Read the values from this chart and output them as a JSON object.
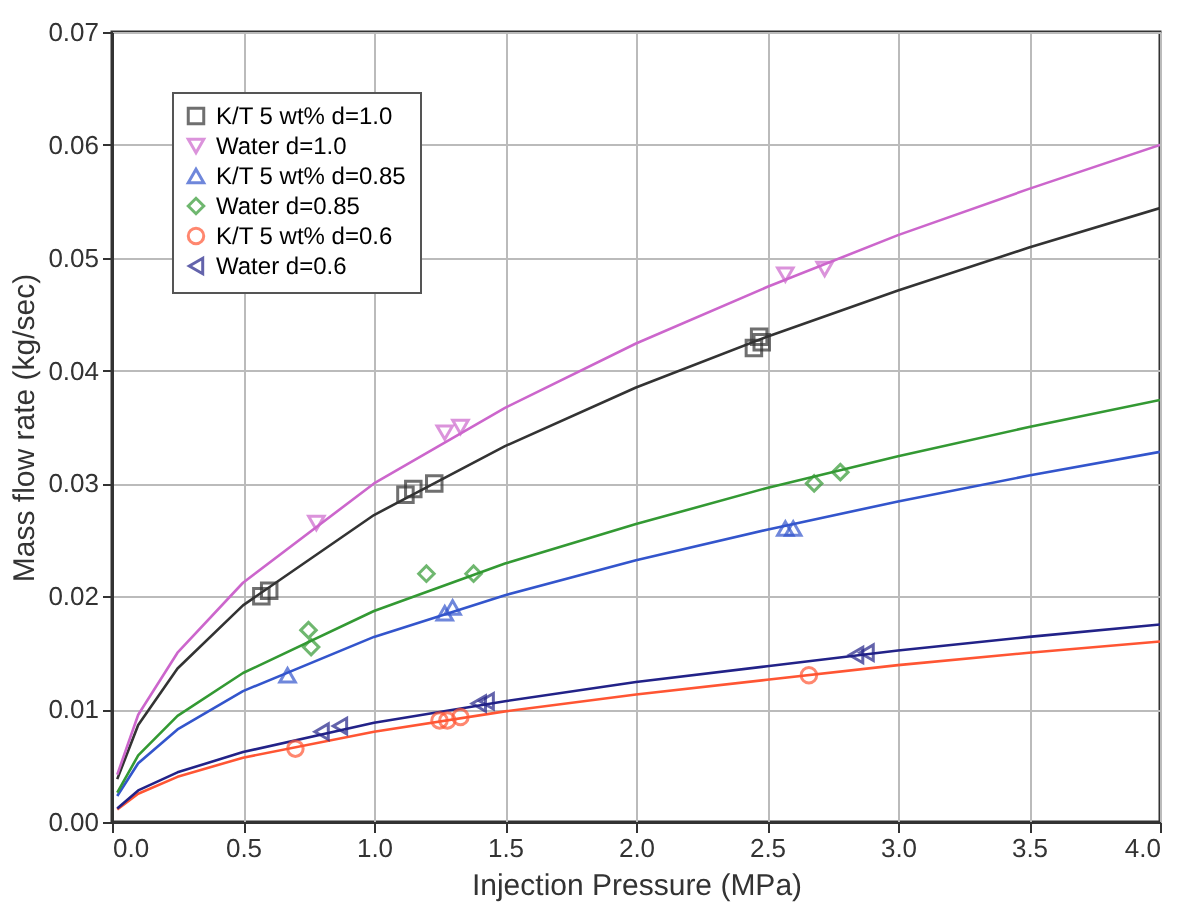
{
  "chart_data": {
    "type": "scatter",
    "xlabel": "Injection Pressure (MPa)",
    "ylabel": "Mass flow rate (kg/sec)",
    "xlim": [
      0,
      4.0
    ],
    "ylim": [
      0,
      0.07
    ],
    "xticks": [
      {
        "value": 0,
        "label": "0.0"
      },
      {
        "value": 0.5,
        "label": "0.5"
      },
      {
        "value": 1,
        "label": "1.0"
      },
      {
        "value": 1.5,
        "label": "1.5"
      },
      {
        "value": 2,
        "label": "2.0"
      },
      {
        "value": 2.5,
        "label": "2.5"
      },
      {
        "value": 3,
        "label": "3.0"
      },
      {
        "value": 3.5,
        "label": "3.5"
      },
      {
        "value": 4,
        "label": "4.0"
      }
    ],
    "yticks": [
      {
        "value": 0,
        "label": "0.00"
      },
      {
        "value": 0.01,
        "label": "0.01"
      },
      {
        "value": 0.02,
        "label": "0.02"
      },
      {
        "value": 0.03,
        "label": "0.03"
      },
      {
        "value": 0.04,
        "label": "0.04"
      },
      {
        "value": 0.05,
        "label": "0.05"
      },
      {
        "value": 0.06,
        "label": "0.06"
      },
      {
        "value": 0.07,
        "label": "0.07"
      }
    ],
    "grid": true,
    "legend": "top left",
    "series": [
      {
        "name": "K/T 5 wt% d=1.0",
        "color": "#333333",
        "marker": "square",
        "x": [
          0.57,
          0.6,
          1.12,
          1.15,
          1.23,
          2.45,
          2.47,
          2.48
        ],
        "values": [
          0.02,
          0.0205,
          0.029,
          0.0295,
          0.03,
          0.042,
          0.043,
          0.0425
        ]
      },
      {
        "name": "Water d=1.0",
        "color": "#cc66cc",
        "marker": "triangle-down",
        "x": [
          0.78,
          1.27,
          1.33,
          2.57,
          2.72
        ],
        "values": [
          0.0265,
          0.0345,
          0.035,
          0.0485,
          0.049
        ]
      },
      {
        "name": "K/T 5 wt% d=0.85",
        "color": "#3355cc",
        "marker": "triangle-up",
        "x": [
          0.67,
          1.27,
          1.3,
          2.57,
          2.6
        ],
        "values": [
          0.013,
          0.0185,
          0.019,
          0.026,
          0.026
        ]
      },
      {
        "name": "Water d=0.85",
        "color": "#339933",
        "marker": "diamond",
        "x": [
          0.75,
          0.76,
          1.2,
          1.38,
          2.68,
          2.78
        ],
        "values": [
          0.017,
          0.0155,
          0.022,
          0.022,
          0.03,
          0.031
        ]
      },
      {
        "name": "K/T 5 wt% d=0.6",
        "color": "#ff5533",
        "marker": "circle",
        "x": [
          0.7,
          1.25,
          1.28,
          1.33,
          2.66
        ],
        "values": [
          0.0065,
          0.009,
          0.009,
          0.0093,
          0.013
        ]
      },
      {
        "name": "Water d=0.6",
        "color": "#222288",
        "marker": "triangle-left",
        "x": [
          0.8,
          0.87,
          1.4,
          1.43,
          2.84,
          2.88
        ],
        "values": [
          0.008,
          0.0085,
          0.0105,
          0.0107,
          0.0148,
          0.015
        ]
      },
      {
        "type": "line",
        "color": "#333333",
        "x": [
          0.02,
          0.1,
          0.25,
          0.5,
          1,
          1.5,
          2,
          2.5,
          3,
          3.5,
          4
        ],
        "values": [
          0.0038,
          0.0086,
          0.0136,
          0.0192,
          0.0272,
          0.0333,
          0.0385,
          0.043,
          0.0471,
          0.0509,
          0.0544
        ]
      },
      {
        "type": "line",
        "color": "#cc66cc",
        "x": [
          0.02,
          0.1,
          0.25,
          0.5,
          1,
          1.5,
          2,
          2.5,
          3,
          3.5,
          4
        ],
        "values": [
          0.0042,
          0.0095,
          0.015,
          0.0212,
          0.03,
          0.0367,
          0.0424,
          0.0474,
          0.052,
          0.0561,
          0.06
        ]
      },
      {
        "type": "line",
        "color": "#3355cc",
        "x": [
          0.02,
          0.1,
          0.25,
          0.5,
          1,
          1.5,
          2,
          2.5,
          3,
          3.5,
          4
        ],
        "values": [
          0.0023,
          0.0052,
          0.0082,
          0.0116,
          0.0164,
          0.0201,
          0.0232,
          0.0259,
          0.0284,
          0.0307,
          0.0328
        ]
      },
      {
        "type": "line",
        "color": "#339933",
        "x": [
          0.02,
          0.1,
          0.25,
          0.5,
          1,
          1.5,
          2,
          2.5,
          3,
          3.5,
          4
        ],
        "values": [
          0.0026,
          0.0059,
          0.0094,
          0.0132,
          0.0187,
          0.0229,
          0.0264,
          0.0296,
          0.0324,
          0.035,
          0.0374
        ]
      },
      {
        "type": "line",
        "color": "#ff5533",
        "x": [
          0.02,
          0.1,
          0.25,
          0.5,
          1,
          1.5,
          2,
          2.5,
          3,
          3.5,
          4
        ],
        "values": [
          0.0011,
          0.0025,
          0.004,
          0.0057,
          0.008,
          0.0098,
          0.0113,
          0.0126,
          0.0139,
          0.015,
          0.016
        ]
      },
      {
        "type": "line",
        "color": "#222288",
        "x": [
          0.02,
          0.1,
          0.25,
          0.5,
          1,
          1.5,
          2,
          2.5,
          3,
          3.5,
          4
        ],
        "values": [
          0.0012,
          0.0028,
          0.0044,
          0.0062,
          0.0088,
          0.0107,
          0.0124,
          0.0138,
          0.0152,
          0.0164,
          0.0175
        ]
      }
    ]
  }
}
